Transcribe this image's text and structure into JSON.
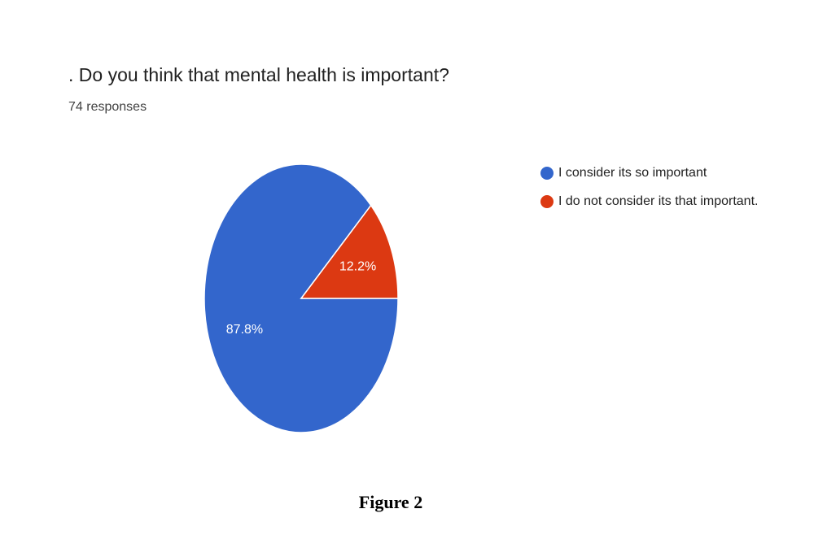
{
  "chart_data": {
    "type": "pie",
    "title": ". Do you think that mental health is important?",
    "subtitle": "74 responses",
    "categories": [
      "I consider its so important",
      "I do not consider its that important."
    ],
    "values": [
      87.8,
      12.2
    ],
    "value_labels": [
      "87.8%",
      "12.2%"
    ],
    "colors": [
      "#3366cc",
      "#dc3912"
    ]
  },
  "caption": "Figure 2"
}
